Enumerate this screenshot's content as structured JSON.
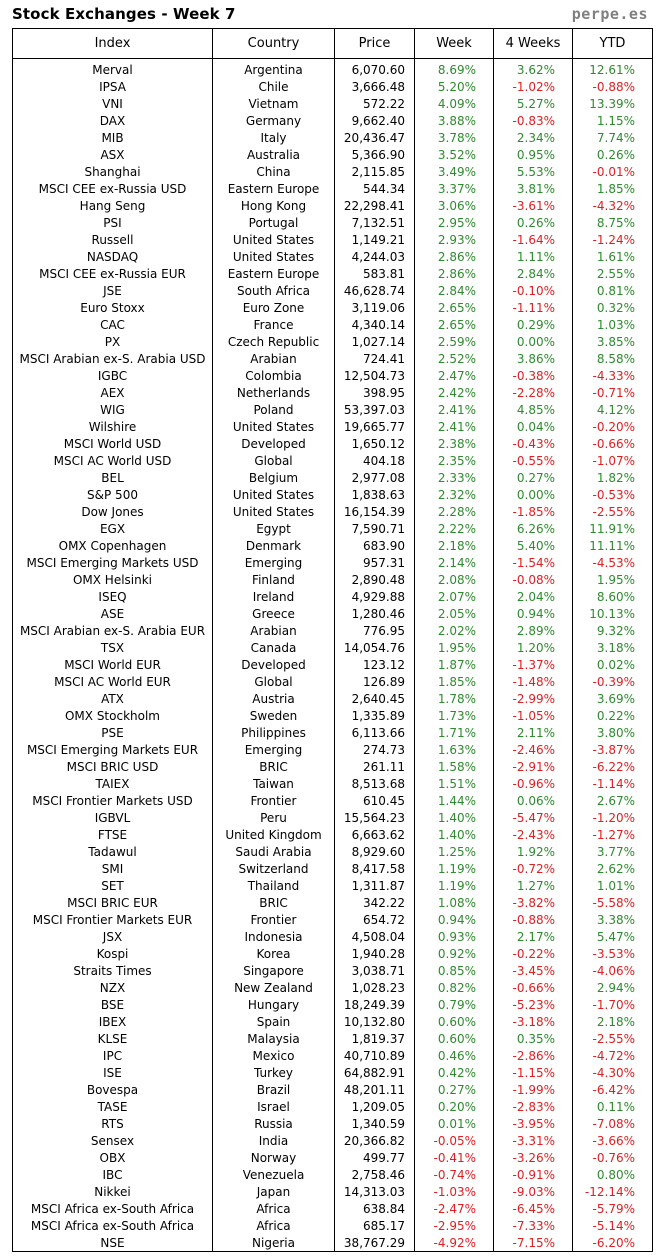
{
  "header": {
    "title": "Stock Exchanges - Week 7",
    "site": "perpe.es"
  },
  "columns": [
    "Index",
    "Country",
    "Price",
    "Week",
    "4 Weeks",
    "YTD"
  ],
  "colors": {
    "positive": "#2e8b2e",
    "negative": "#e02020"
  },
  "rows": [
    [
      "Merval",
      "Argentina",
      "6,070.60",
      "8.69%",
      "3.62%",
      "12.61%"
    ],
    [
      "IPSA",
      "Chile",
      "3,666.48",
      "5.20%",
      "-1.02%",
      "-0.88%"
    ],
    [
      "VNI",
      "Vietnam",
      "572.22",
      "4.09%",
      "5.27%",
      "13.39%"
    ],
    [
      "DAX",
      "Germany",
      "9,662.40",
      "3.88%",
      "-0.83%",
      "1.15%"
    ],
    [
      "MIB",
      "Italy",
      "20,436.47",
      "3.78%",
      "2.34%",
      "7.74%"
    ],
    [
      "ASX",
      "Australia",
      "5,366.90",
      "3.52%",
      "0.95%",
      "0.26%"
    ],
    [
      "Shanghai",
      "China",
      "2,115.85",
      "3.49%",
      "5.53%",
      "-0.01%"
    ],
    [
      "MSCI CEE ex-Russia USD",
      "Eastern Europe",
      "544.34",
      "3.37%",
      "3.81%",
      "1.85%"
    ],
    [
      "Hang Seng",
      "Hong Kong",
      "22,298.41",
      "3.06%",
      "-3.61%",
      "-4.32%"
    ],
    [
      "PSI",
      "Portugal",
      "7,132.51",
      "2.95%",
      "0.26%",
      "8.75%"
    ],
    [
      "Russell",
      "United States",
      "1,149.21",
      "2.93%",
      "-1.64%",
      "-1.24%"
    ],
    [
      "NASDAQ",
      "United States",
      "4,244.03",
      "2.86%",
      "1.11%",
      "1.61%"
    ],
    [
      "MSCI CEE ex-Russia EUR",
      "Eastern Europe",
      "583.81",
      "2.86%",
      "2.84%",
      "2.55%"
    ],
    [
      "JSE",
      "South Africa",
      "46,628.74",
      "2.84%",
      "-0.10%",
      "0.81%"
    ],
    [
      "Euro Stoxx",
      "Euro Zone",
      "3,119.06",
      "2.65%",
      "-1.11%",
      "0.32%"
    ],
    [
      "CAC",
      "France",
      "4,340.14",
      "2.65%",
      "0.29%",
      "1.03%"
    ],
    [
      "PX",
      "Czech Republic",
      "1,027.14",
      "2.59%",
      "0.00%",
      "3.85%"
    ],
    [
      "MSCI Arabian ex-S. Arabia USD",
      "Arabian",
      "724.41",
      "2.52%",
      "3.86%",
      "8.58%"
    ],
    [
      "IGBC",
      "Colombia",
      "12,504.73",
      "2.47%",
      "-0.38%",
      "-4.33%"
    ],
    [
      "AEX",
      "Netherlands",
      "398.95",
      "2.42%",
      "-2.28%",
      "-0.71%"
    ],
    [
      "WIG",
      "Poland",
      "53,397.03",
      "2.41%",
      "4.85%",
      "4.12%"
    ],
    [
      "Wilshire",
      "United States",
      "19,665.77",
      "2.41%",
      "0.04%",
      "-0.20%"
    ],
    [
      "MSCI World USD",
      "Developed",
      "1,650.12",
      "2.38%",
      "-0.43%",
      "-0.66%"
    ],
    [
      "MSCI AC World USD",
      "Global",
      "404.18",
      "2.35%",
      "-0.55%",
      "-1.07%"
    ],
    [
      "BEL",
      "Belgium",
      "2,977.08",
      "2.33%",
      "0.27%",
      "1.82%"
    ],
    [
      "S&P 500",
      "United States",
      "1,838.63",
      "2.32%",
      "0.00%",
      "-0.53%"
    ],
    [
      "Dow Jones",
      "United States",
      "16,154.39",
      "2.28%",
      "-1.85%",
      "-2.55%"
    ],
    [
      "EGX",
      "Egypt",
      "7,590.71",
      "2.22%",
      "6.26%",
      "11.91%"
    ],
    [
      "OMX Copenhagen",
      "Denmark",
      "683.90",
      "2.18%",
      "5.40%",
      "11.11%"
    ],
    [
      "MSCI Emerging Markets USD",
      "Emerging",
      "957.31",
      "2.14%",
      "-1.54%",
      "-4.53%"
    ],
    [
      "OMX Helsinki",
      "Finland",
      "2,890.48",
      "2.08%",
      "-0.08%",
      "1.95%"
    ],
    [
      "ISEQ",
      "Ireland",
      "4,929.88",
      "2.07%",
      "2.04%",
      "8.60%"
    ],
    [
      "ASE",
      "Greece",
      "1,280.46",
      "2.05%",
      "0.94%",
      "10.13%"
    ],
    [
      "MSCI Arabian ex-S. Arabia EUR",
      "Arabian",
      "776.95",
      "2.02%",
      "2.89%",
      "9.32%"
    ],
    [
      "TSX",
      "Canada",
      "14,054.76",
      "1.95%",
      "1.20%",
      "3.18%"
    ],
    [
      "MSCI World EUR",
      "Developed",
      "123.12",
      "1.87%",
      "-1.37%",
      "0.02%"
    ],
    [
      "MSCI AC World EUR",
      "Global",
      "126.89",
      "1.85%",
      "-1.48%",
      "-0.39%"
    ],
    [
      "ATX",
      "Austria",
      "2,640.45",
      "1.78%",
      "-2.99%",
      "3.69%"
    ],
    [
      "OMX Stockholm",
      "Sweden",
      "1,335.89",
      "1.73%",
      "-1.05%",
      "0.22%"
    ],
    [
      "PSE",
      "Philippines",
      "6,113.66",
      "1.71%",
      "2.11%",
      "3.80%"
    ],
    [
      "MSCI Emerging Markets EUR",
      "Emerging",
      "274.73",
      "1.63%",
      "-2.46%",
      "-3.87%"
    ],
    [
      "MSCI BRIC USD",
      "BRIC",
      "261.11",
      "1.58%",
      "-2.91%",
      "-6.22%"
    ],
    [
      "TAIEX",
      "Taiwan",
      "8,513.68",
      "1.51%",
      "-0.96%",
      "-1.14%"
    ],
    [
      "MSCI Frontier Markets USD",
      "Frontier",
      "610.45",
      "1.44%",
      "0.06%",
      "2.67%"
    ],
    [
      "IGBVL",
      "Peru",
      "15,564.23",
      "1.40%",
      "-5.47%",
      "-1.20%"
    ],
    [
      "FTSE",
      "United Kingdom",
      "6,663.62",
      "1.40%",
      "-2.43%",
      "-1.27%"
    ],
    [
      "Tadawul",
      "Saudi Arabia",
      "8,929.60",
      "1.25%",
      "1.92%",
      "3.77%"
    ],
    [
      "SMI",
      "Switzerland",
      "8,417.58",
      "1.19%",
      "-0.72%",
      "2.62%"
    ],
    [
      "SET",
      "Thailand",
      "1,311.87",
      "1.19%",
      "1.27%",
      "1.01%"
    ],
    [
      "MSCI BRIC EUR",
      "BRIC",
      "342.22",
      "1.08%",
      "-3.82%",
      "-5.58%"
    ],
    [
      "MSCI Frontier Markets EUR",
      "Frontier",
      "654.72",
      "0.94%",
      "-0.88%",
      "3.38%"
    ],
    [
      "JSX",
      "Indonesia",
      "4,508.04",
      "0.93%",
      "2.17%",
      "5.47%"
    ],
    [
      "Kospi",
      "Korea",
      "1,940.28",
      "0.92%",
      "-0.22%",
      "-3.53%"
    ],
    [
      "Straits Times",
      "Singapore",
      "3,038.71",
      "0.85%",
      "-3.45%",
      "-4.06%"
    ],
    [
      "NZX",
      "New Zealand",
      "1,028.23",
      "0.82%",
      "-0.66%",
      "2.94%"
    ],
    [
      "BSE",
      "Hungary",
      "18,249.39",
      "0.79%",
      "-5.23%",
      "-1.70%"
    ],
    [
      "IBEX",
      "Spain",
      "10,132.80",
      "0.60%",
      "-3.18%",
      "2.18%"
    ],
    [
      "KLSE",
      "Malaysia",
      "1,819.37",
      "0.60%",
      "0.35%",
      "-2.55%"
    ],
    [
      "IPC",
      "Mexico",
      "40,710.89",
      "0.46%",
      "-2.86%",
      "-4.72%"
    ],
    [
      "ISE",
      "Turkey",
      "64,882.91",
      "0.42%",
      "-1.15%",
      "-4.30%"
    ],
    [
      "Bovespa",
      "Brazil",
      "48,201.11",
      "0.27%",
      "-1.99%",
      "-6.42%"
    ],
    [
      "TASE",
      "Israel",
      "1,209.05",
      "0.20%",
      "-2.83%",
      "0.11%"
    ],
    [
      "RTS",
      "Russia",
      "1,340.59",
      "0.01%",
      "-3.95%",
      "-7.08%"
    ],
    [
      "Sensex",
      "India",
      "20,366.82",
      "-0.05%",
      "-3.31%",
      "-3.66%"
    ],
    [
      "OBX",
      "Norway",
      "499.77",
      "-0.41%",
      "-3.26%",
      "-0.76%"
    ],
    [
      "IBC",
      "Venezuela",
      "2,758.46",
      "-0.74%",
      "-0.91%",
      "0.80%"
    ],
    [
      "Nikkei",
      "Japan",
      "14,313.03",
      "-1.03%",
      "-9.03%",
      "-12.14%"
    ],
    [
      "MSCI Africa ex-South Africa",
      "Africa",
      "638.84",
      "-2.47%",
      "-6.45%",
      "-5.79%"
    ],
    [
      "MSCI Africa ex-South Africa",
      "Africa",
      "685.17",
      "-2.95%",
      "-7.33%",
      "-5.14%"
    ],
    [
      "NSE",
      "Nigeria",
      "38,767.29",
      "-4.92%",
      "-7.15%",
      "-6.20%"
    ]
  ]
}
